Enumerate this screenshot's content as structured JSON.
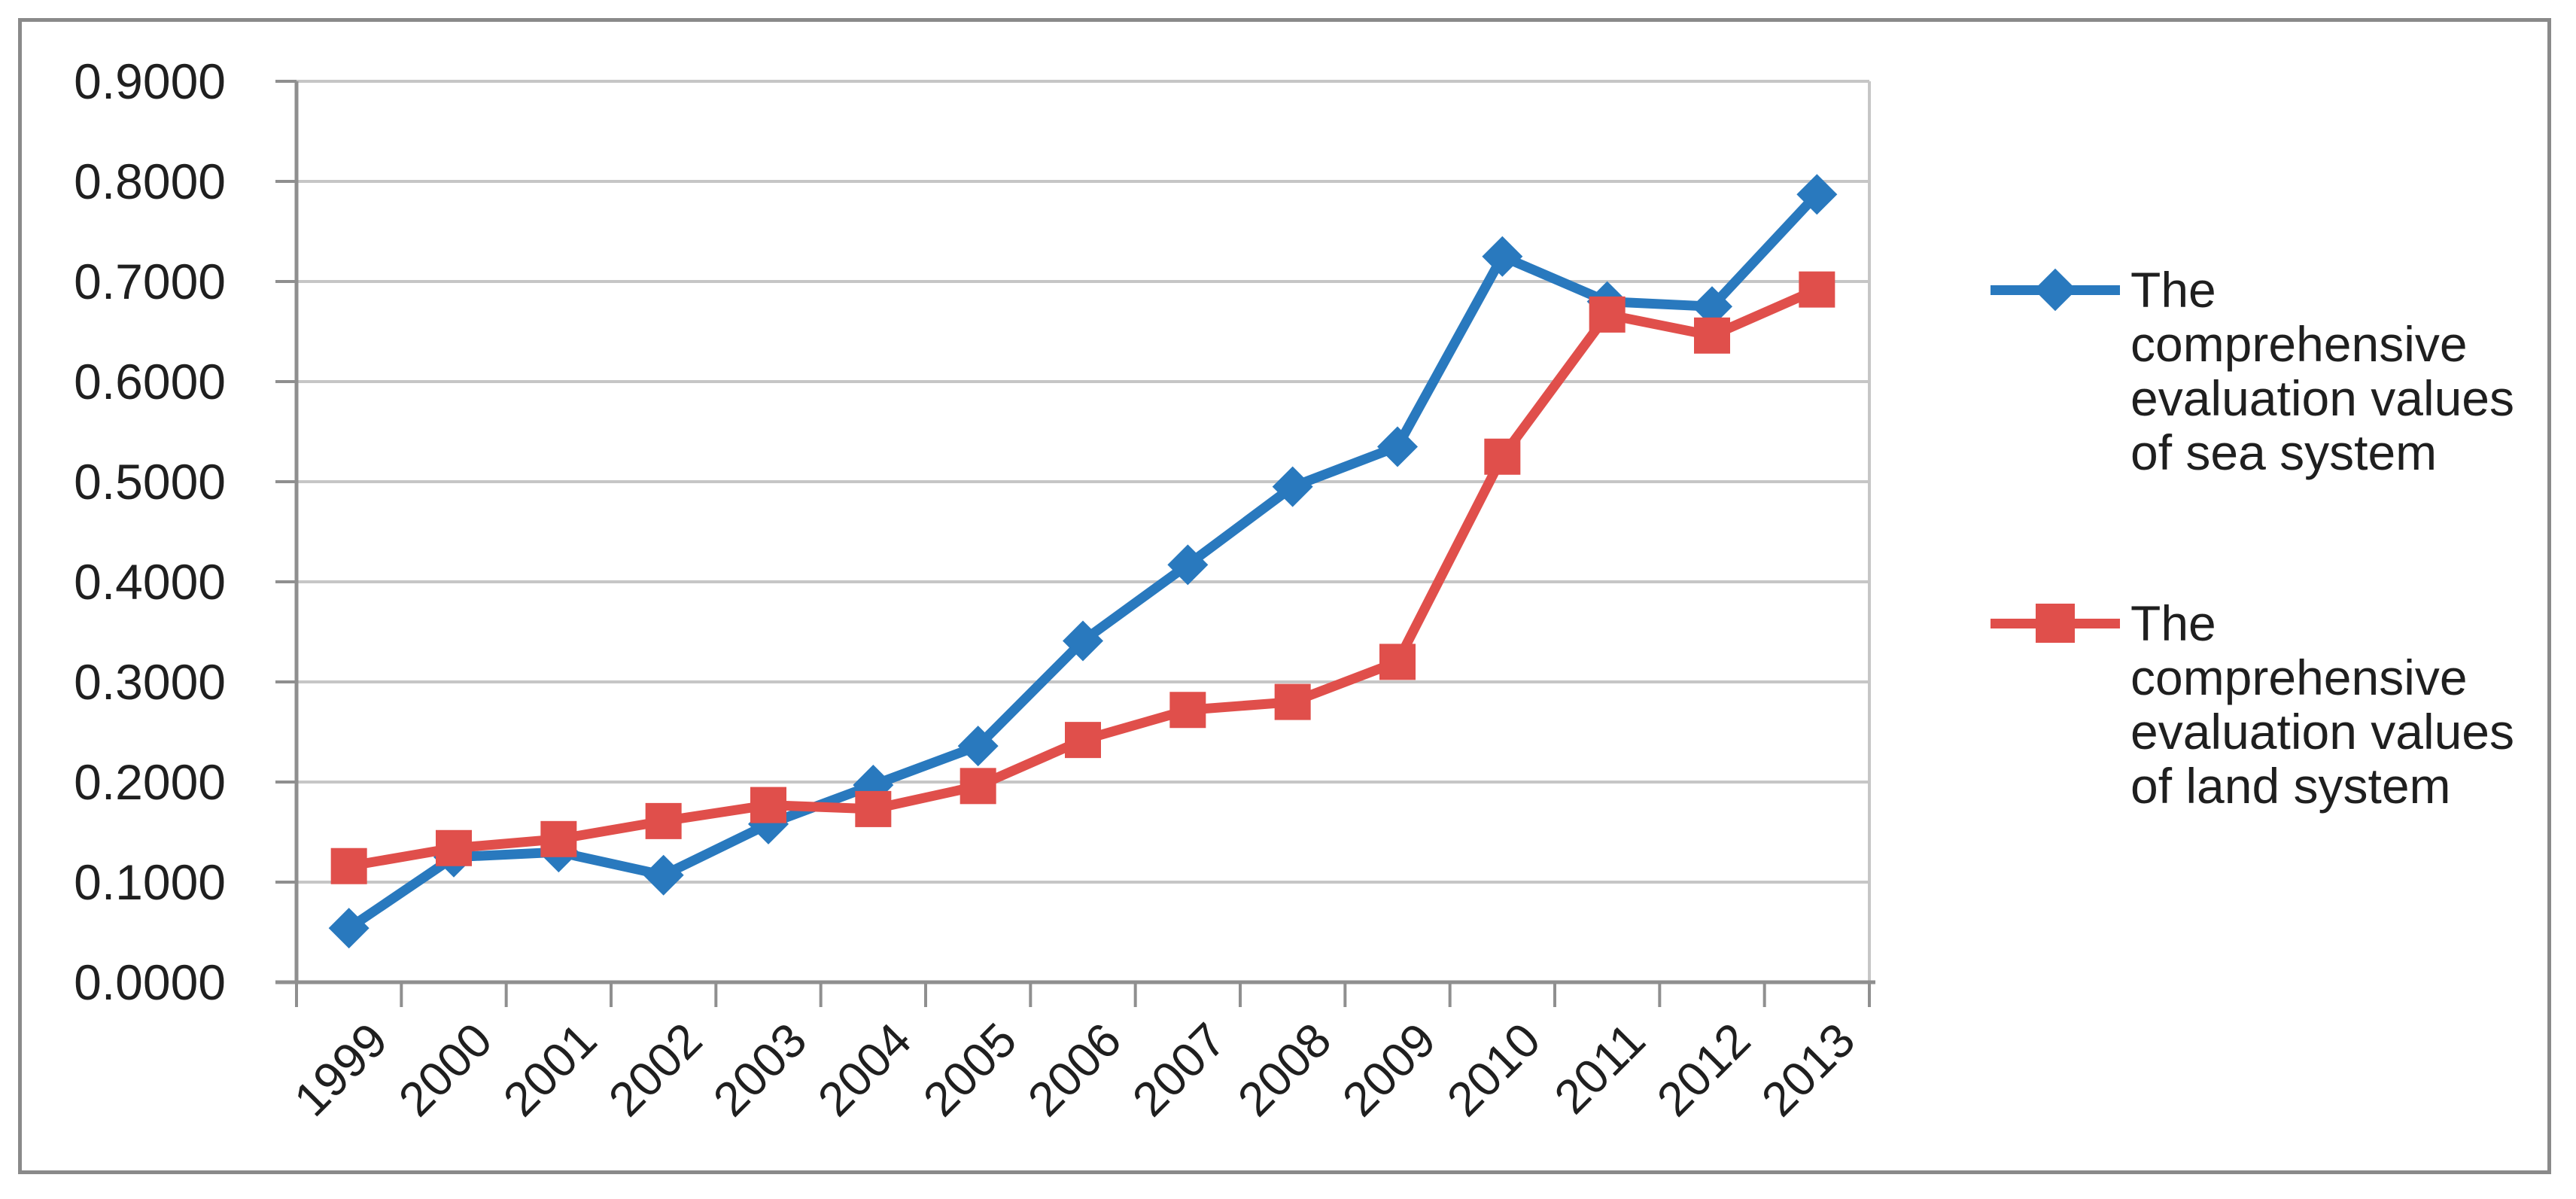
{
  "figure": {
    "background": "#ffffff",
    "border_color": "#8a8a8a",
    "gridline_color": "#c6c6c6",
    "axis_color": "#8f8f8f",
    "text_color": "#1f1f1f"
  },
  "axes": {
    "y": {
      "ticks": [
        "0.0000",
        "0.1000",
        "0.2000",
        "0.3000",
        "0.4000",
        "0.5000",
        "0.6000",
        "0.7000",
        "0.8000",
        "0.9000"
      ]
    },
    "x": {
      "ticks": [
        "1999",
        "2000",
        "2001",
        "2002",
        "2003",
        "2004",
        "2005",
        "2006",
        "2007",
        "2008",
        "2009",
        "2010",
        "2011",
        "2012",
        "2013"
      ]
    }
  },
  "legend": {
    "items": [
      {
        "label": "The comprehensive evaluation values of sea system",
        "color": "#2979be",
        "marker": "diamond"
      },
      {
        "label": "The comprehensive evaluation values of land system",
        "color": "#e04f4b",
        "marker": "square"
      }
    ]
  },
  "chart_data": {
    "type": "line",
    "title": "",
    "xlabel": "",
    "ylabel": "",
    "categories": [
      "1999",
      "2000",
      "2001",
      "2002",
      "2003",
      "2004",
      "2005",
      "2006",
      "2007",
      "2008",
      "2009",
      "2010",
      "2011",
      "2012",
      "2013"
    ],
    "series": [
      {
        "name": "The comprehensive evaluation values of sea system",
        "color": "#2979be",
        "marker": "diamond",
        "values": [
          0.054,
          0.125,
          0.13,
          0.107,
          0.158,
          0.197,
          0.236,
          0.341,
          0.417,
          0.495,
          0.535,
          0.725,
          0.68,
          0.675,
          0.787
        ]
      },
      {
        "name": "The comprehensive evaluation values of land system",
        "color": "#e04f4b",
        "marker": "square",
        "values": [
          0.116,
          0.134,
          0.143,
          0.161,
          0.177,
          0.173,
          0.196,
          0.242,
          0.272,
          0.28,
          0.32,
          0.525,
          0.667,
          0.646,
          0.692
        ]
      }
    ],
    "ylim": [
      0.0,
      0.9
    ],
    "ytick_step": 0.1,
    "grid": true,
    "legend_position": "right"
  }
}
